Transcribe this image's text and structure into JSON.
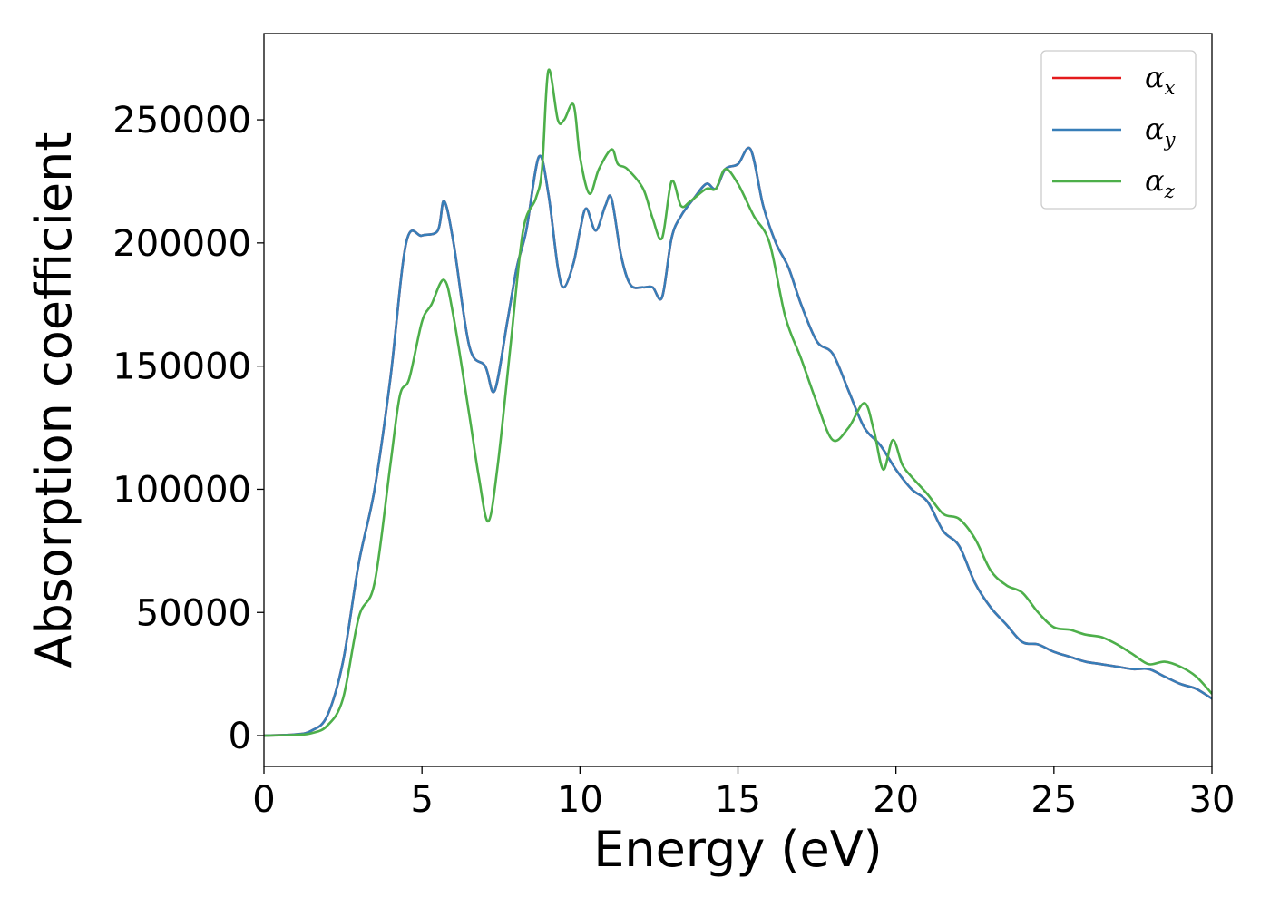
{
  "chart_data": {
    "type": "line",
    "title": "",
    "xlabel": "Energy (eV)",
    "ylabel": "Absorption coefficient",
    "xlim": [
      0,
      30
    ],
    "ylim": [
      -12500,
      285000
    ],
    "xticks": [
      0,
      5,
      10,
      15,
      20,
      25,
      30
    ],
    "yticks": [
      0,
      50000,
      100000,
      150000,
      200000,
      250000
    ],
    "grid": false,
    "legend_position": "top-right",
    "series": [
      {
        "name": "α",
        "subscript": "x",
        "color": "#e41a1c",
        "x": [
          0,
          1,
          1.5,
          2,
          2.5,
          3,
          3.5,
          4,
          4.5,
          5,
          5.5,
          5.7,
          6,
          6.5,
          7,
          7.3,
          7.7,
          8,
          8.3,
          8.7,
          9,
          9.3,
          9.5,
          9.8,
          10,
          10.2,
          10.5,
          10.8,
          11,
          11.3,
          11.6,
          12,
          12.3,
          12.6,
          12.9,
          13.2,
          13.6,
          14,
          14.3,
          14.6,
          15,
          15.4,
          15.8,
          16.2,
          16.6,
          17,
          17.5,
          18,
          18.5,
          19,
          19.5,
          20,
          20.5,
          21,
          21.5,
          22,
          22.5,
          23,
          23.5,
          24,
          24.5,
          25,
          25.5,
          26,
          26.5,
          27,
          27.5,
          28,
          28.5,
          29,
          29.5,
          30
        ],
        "y": [
          0,
          500,
          2000,
          8000,
          30000,
          70000,
          100000,
          145000,
          200000,
          203000,
          205000,
          217000,
          200000,
          158000,
          150000,
          140000,
          168000,
          190000,
          205000,
          235000,
          220000,
          190000,
          182000,
          192000,
          205000,
          214000,
          205000,
          215000,
          218000,
          195000,
          183000,
          182000,
          182000,
          178000,
          202000,
          211000,
          218000,
          224000,
          222000,
          230000,
          232000,
          238000,
          215000,
          200000,
          190000,
          175000,
          160000,
          155000,
          140000,
          125000,
          118000,
          108000,
          100000,
          95000,
          83000,
          77000,
          62000,
          52000,
          45000,
          38000,
          37000,
          34000,
          32000,
          30000,
          29000,
          28000,
          27000,
          27000,
          24000,
          21000,
          19000,
          15000
        ]
      },
      {
        "name": "α",
        "subscript": "y",
        "color": "#377eb8",
        "x": [
          0,
          1,
          1.5,
          2,
          2.5,
          3,
          3.5,
          4,
          4.5,
          5,
          5.5,
          5.7,
          6,
          6.5,
          7,
          7.3,
          7.7,
          8,
          8.3,
          8.7,
          9,
          9.3,
          9.5,
          9.8,
          10,
          10.2,
          10.5,
          10.8,
          11,
          11.3,
          11.6,
          12,
          12.3,
          12.6,
          12.9,
          13.2,
          13.6,
          14,
          14.3,
          14.6,
          15,
          15.4,
          15.8,
          16.2,
          16.6,
          17,
          17.5,
          18,
          18.5,
          19,
          19.5,
          20,
          20.5,
          21,
          21.5,
          22,
          22.5,
          23,
          23.5,
          24,
          24.5,
          25,
          25.5,
          26,
          26.5,
          27,
          27.5,
          28,
          28.5,
          29,
          29.5,
          30
        ],
        "y": [
          0,
          500,
          2000,
          8000,
          30000,
          70000,
          100000,
          145000,
          200000,
          203000,
          205000,
          217000,
          200000,
          158000,
          150000,
          140000,
          168000,
          190000,
          205000,
          235000,
          220000,
          190000,
          182000,
          192000,
          205000,
          214000,
          205000,
          215000,
          218000,
          195000,
          183000,
          182000,
          182000,
          178000,
          202000,
          211000,
          218000,
          224000,
          222000,
          230000,
          232000,
          238000,
          215000,
          200000,
          190000,
          175000,
          160000,
          155000,
          140000,
          125000,
          118000,
          108000,
          100000,
          95000,
          83000,
          77000,
          62000,
          52000,
          45000,
          38000,
          37000,
          34000,
          32000,
          30000,
          29000,
          28000,
          27000,
          27000,
          24000,
          21000,
          19000,
          15000
        ]
      },
      {
        "name": "α",
        "subscript": "z",
        "color": "#4daf4a",
        "x": [
          0,
          1,
          1.5,
          2,
          2.5,
          3,
          3.5,
          4,
          4.3,
          4.6,
          5,
          5.3,
          5.7,
          6,
          6.5,
          6.8,
          7.1,
          7.4,
          7.8,
          8.2,
          8.6,
          8.8,
          9,
          9.3,
          9.5,
          9.8,
          10,
          10.3,
          10.6,
          11,
          11.2,
          11.5,
          12,
          12.3,
          12.6,
          12.9,
          13.2,
          13.5,
          14,
          14.3,
          14.6,
          15,
          15.5,
          16,
          16.5,
          17,
          17.5,
          18,
          18.5,
          19,
          19.3,
          19.6,
          19.9,
          20.2,
          20.5,
          21,
          21.5,
          22,
          22.5,
          23,
          23.5,
          24,
          24.5,
          25,
          25.5,
          26,
          26.5,
          27,
          27.5,
          28,
          28.5,
          29,
          29.5,
          30
        ],
        "y": [
          0,
          300,
          1000,
          4000,
          15000,
          48000,
          62000,
          110000,
          138000,
          145000,
          168000,
          175000,
          185000,
          170000,
          130000,
          105000,
          87000,
          110000,
          158000,
          205000,
          218000,
          230000,
          270000,
          250000,
          250000,
          256000,
          235000,
          220000,
          230000,
          238000,
          232000,
          230000,
          222000,
          210000,
          202000,
          225000,
          215000,
          217000,
          222000,
          222000,
          230000,
          224000,
          211000,
          200000,
          170000,
          153000,
          135000,
          120000,
          125000,
          135000,
          124000,
          108000,
          120000,
          110000,
          105000,
          98000,
          90000,
          88000,
          80000,
          67000,
          61000,
          58000,
          50000,
          44000,
          43000,
          41000,
          40000,
          37000,
          33000,
          29000,
          30000,
          28000,
          24000,
          17000
        ]
      }
    ]
  }
}
